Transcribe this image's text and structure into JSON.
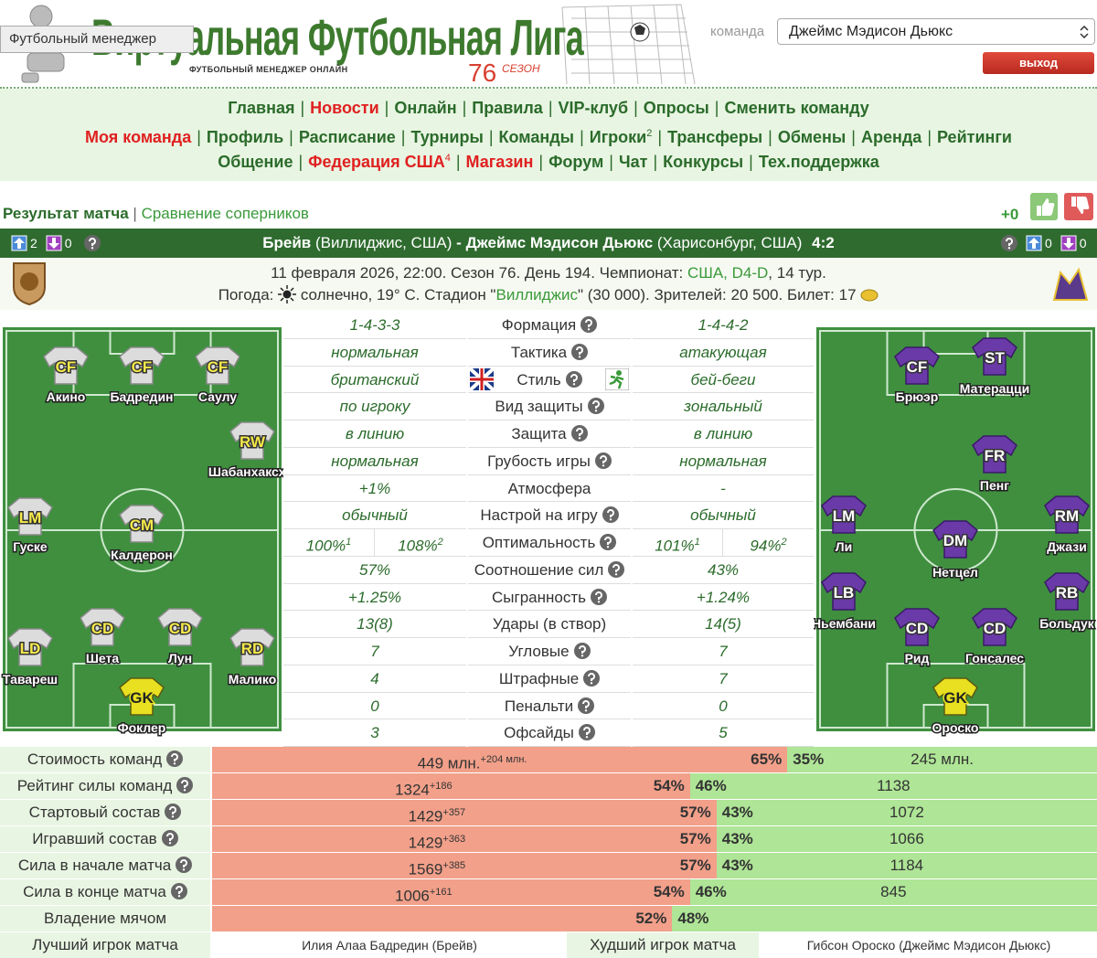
{
  "header": {
    "tooltip": "Футбольный менеджер",
    "title": "Виртуальная Футбольная Лига",
    "subtitle": "ФУТБОЛЬНЫЙ МЕНЕДЖЕР ОНЛАЙН",
    "season_number": "76",
    "season_label": "СЕЗОН",
    "team_label": "команда",
    "team_select": "Джеймс Мэдисон Дьюкс",
    "logout": "выход"
  },
  "nav": {
    "separator": "|",
    "rows": [
      [
        {
          "text": "Главная"
        },
        {
          "text": "Новости",
          "highlight": true
        },
        {
          "text": "Онлайн"
        },
        {
          "text": "Правила"
        },
        {
          "text": "VIP-клуб"
        },
        {
          "text": "Опросы"
        },
        {
          "text": "Сменить команду"
        }
      ],
      [
        {
          "text": "Моя команда",
          "highlight": true
        },
        {
          "text": "Профиль"
        },
        {
          "text": "Расписание"
        },
        {
          "text": "Турниры"
        },
        {
          "text": "Команды"
        },
        {
          "text": "Игроки",
          "sup": "2"
        },
        {
          "text": "Трансферы"
        },
        {
          "text": "Обмены"
        },
        {
          "text": "Аренда"
        },
        {
          "text": "Рейтинги"
        }
      ],
      [
        {
          "text": "Общение"
        },
        {
          "text": "Федерация США",
          "sup": "4",
          "highlight": true
        },
        {
          "text": "Магазин",
          "highlight": true
        },
        {
          "text": "Форум"
        },
        {
          "text": "Чат"
        },
        {
          "text": "Конкурсы"
        },
        {
          "text": "Тех.поддержка"
        }
      ]
    ]
  },
  "tabs": {
    "active": "Результат матча",
    "separator": "|",
    "other": "Сравнение соперников",
    "rating": "+0"
  },
  "match": {
    "home": {
      "up": "2",
      "down": "0",
      "name": "Брейв",
      "location": "(Виллиджис, США)"
    },
    "dash": "-",
    "away": {
      "up": "0",
      "down": "0",
      "name": "Джеймс Мэдисон Дьюкс",
      "location": "(Харисонбург, США)"
    },
    "score": "4:2"
  },
  "info": {
    "line1": "11 февраля 2026, 22:00. Сезон 76. День 194. Чемпионат:",
    "league": "США, D4-D",
    "line1_end": ", 14 тур.",
    "weather_label": "Погода:",
    "line2": "солнечно, 19° С. Стадион \"",
    "stadium": "Виллиджис",
    "line2_end": "\" (30 000). Зрителей: 20 500. Билет: 17"
  },
  "lineups": {
    "home": [
      {
        "pos": "CF",
        "name": "Акино"
      },
      {
        "pos": "CF",
        "name": "Бадредин"
      },
      {
        "pos": "CF",
        "name": "Саулу"
      },
      {
        "pos": "RW",
        "name": "Шабанхаксха."
      },
      {
        "pos": "LM",
        "name": "Гуске"
      },
      {
        "pos": "CM",
        "name": "Калдерон"
      },
      {
        "pos": "LD",
        "name": "Тавареш"
      },
      {
        "pos": "CD",
        "name": "Шета"
      },
      {
        "pos": "CD",
        "name": "Лун"
      },
      {
        "pos": "RD",
        "name": "Малико"
      },
      {
        "pos": "GK",
        "name": "Фоклер"
      }
    ],
    "away": [
      {
        "pos": "CF",
        "name": "Брюэр"
      },
      {
        "pos": "ST",
        "name": "Матерацци"
      },
      {
        "pos": "FR",
        "name": "Пенг"
      },
      {
        "pos": "LM",
        "name": "Ли"
      },
      {
        "pos": "RM",
        "name": "Джази"
      },
      {
        "pos": "DM",
        "name": "Нетцел"
      },
      {
        "pos": "LB",
        "name": "Ньембани"
      },
      {
        "pos": "RB",
        "name": "Больдук"
      },
      {
        "pos": "CD",
        "name": "Рид"
      },
      {
        "pos": "CD",
        "name": "Гонсалес"
      },
      {
        "pos": "GK",
        "name": "Ороско"
      }
    ]
  },
  "stats": {
    "rows": [
      {
        "home": "1-4-3-3",
        "label": "Формация",
        "away": "1-4-4-2",
        "help": true
      },
      {
        "home": "нормальная",
        "label": "Тактика",
        "away": "атакующая",
        "help": true
      },
      {
        "home": "британский",
        "label": "Стиль",
        "away": "бей-беги",
        "help": true
      },
      {
        "home": "по игроку",
        "label": "Вид защиты",
        "away": "зональный",
        "help": true
      },
      {
        "home": "в линию",
        "label": "Защита",
        "away": "в линию",
        "help": true
      },
      {
        "home": "нормальная",
        "label": "Грубость игры",
        "away": "нормальная",
        "help": true
      },
      {
        "home": "+1%",
        "label": "Атмосфера",
        "away": "-",
        "help": false
      },
      {
        "home": "обычный",
        "label": "Настрой на игру",
        "away": "обычный",
        "help": true
      },
      {
        "home": [
          {
            "value": "100%",
            "sup": "1"
          },
          {
            "value": "108%",
            "sup": "2"
          }
        ],
        "label": "Оптимальность",
        "away": [
          {
            "value": "101%",
            "sup": "1"
          },
          {
            "value": "94%",
            "sup": "2"
          }
        ],
        "help": true
      },
      {
        "home": "57%",
        "label": "Соотношение сил",
        "away": "43%",
        "help": true
      },
      {
        "home": "+1.25%",
        "label": "Сыгранность",
        "away": "+1.24%",
        "help": true
      },
      {
        "home": "13(8)",
        "label": "Удары (в створ)",
        "away": "14(5)",
        "help": false
      },
      {
        "home": "7",
        "label": "Угловые",
        "away": "7",
        "help": true
      },
      {
        "home": "4",
        "label": "Штрафные",
        "away": "7",
        "help": true
      },
      {
        "home": "0",
        "label": "Пенальти",
        "away": "0",
        "help": true
      },
      {
        "home": "3",
        "label": "Офсайды",
        "away": "5",
        "help": true
      }
    ]
  },
  "comparison": {
    "rows": [
      {
        "label": "Стоимость команд",
        "help": true,
        "home": "449 млн.",
        "home_sup": "+204 млн.",
        "pct": [
          65,
          35
        ],
        "pct_labels": [
          "65%",
          "35%"
        ],
        "away": "245 млн."
      },
      {
        "label": "Рейтинг силы команд",
        "help": true,
        "home": "1324",
        "home_sup": "+186",
        "pct": [
          54,
          46
        ],
        "pct_labels": [
          "54%",
          "46%"
        ],
        "away": "1138"
      },
      {
        "label": "Стартовый состав",
        "help": true,
        "home": "1429",
        "home_sup": "+357",
        "pct": [
          57,
          43
        ],
        "pct_labels": [
          "57%",
          "43%"
        ],
        "away": "1072"
      },
      {
        "label": "Игравший состав",
        "help": true,
        "home": "1429",
        "home_sup": "+363",
        "pct": [
          57,
          43
        ],
        "pct_labels": [
          "57%",
          "43%"
        ],
        "away": "1066"
      },
      {
        "label": "Сила в начале матча",
        "help": true,
        "home": "1569",
        "home_sup": "+385",
        "pct": [
          57,
          43
        ],
        "pct_labels": [
          "57%",
          "43%"
        ],
        "away": "1184"
      },
      {
        "label": "Сила в конце матча",
        "help": true,
        "home": "1006",
        "home_sup": "+161",
        "pct": [
          54,
          46
        ],
        "pct_labels": [
          "54%",
          "46%"
        ],
        "away": "845"
      },
      {
        "label": "Владение мячом",
        "help": false,
        "pct": [
          52,
          48
        ],
        "pct_labels": [
          "52%",
          "48%"
        ]
      }
    ]
  },
  "awards": {
    "best_label": "Лучший игрок матча",
    "best": "Илия Алаа Бадредин (Брейв)",
    "worst_label": "Худший игрок матча",
    "worst": "Гибсон Ороско (Джеймс Мэдисон Дьюкс)"
  }
}
